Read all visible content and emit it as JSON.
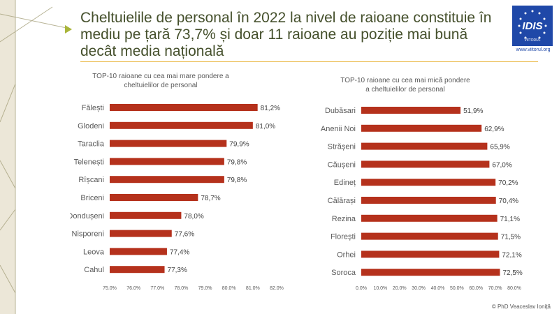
{
  "title": "Cheltuielile de personal în 2022 la nivel de raioane constituie în mediu pe țară 73,7% și doar 11 raioane au poziție mai bună decât media națională",
  "title_lines": [
    "Cheltuielile de personal în 2022 la nivel de raioane constituie în",
    "mediu pe țară 73,7% și doar 11 raioane au poziție mai bună",
    "decât media națională"
  ],
  "logo": {
    "text": "IDIS",
    "sub": "VIITORUL",
    "url": "www.viitorul.org"
  },
  "copyright": "© PhD Veaceslav Ioniță",
  "colors": {
    "bar": "#b5311c",
    "title": "#45502c",
    "accent": "#e9b640",
    "logo": "#1f48a8"
  },
  "chart_data": [
    {
      "type": "bar",
      "orientation": "horizontal",
      "title": "TOP-10 raioane cu cea mai mare pondere a cheltuielilor de personal",
      "title_lines": [
        "TOP-10 raioane cu cea mai mare pondere a",
        "cheltuielilor de personal"
      ],
      "categories": [
        "Fălești",
        "Glodeni",
        "Taraclia",
        "Telenești",
        "Rîșcani",
        "Briceni",
        "Dondușeni",
        "Nisporeni",
        "Leova",
        "Cahul"
      ],
      "values": [
        81.2,
        81.0,
        79.9,
        79.8,
        79.8,
        78.7,
        78.0,
        77.6,
        77.4,
        77.3
      ],
      "labels": [
        "81,2%",
        "81,0%",
        "79,9%",
        "79,8%",
        "79,8%",
        "78,7%",
        "78,0%",
        "77,6%",
        "77,4%",
        "77,3%"
      ],
      "xlim": [
        75,
        82
      ],
      "ticks": [
        75,
        76,
        77,
        78,
        79,
        80,
        81,
        82
      ],
      "tick_labels": [
        "75.0%",
        "76.0%",
        "77.0%",
        "78.0%",
        "79.0%",
        "80.0%",
        "81.0%",
        "82.0%"
      ],
      "xlabel": "",
      "ylabel": "",
      "grid": false
    },
    {
      "type": "bar",
      "orientation": "horizontal",
      "title": "TOP-10 raioane cu cea mai mică pondere a cheltuielilor de personal",
      "title_lines": [
        "TOP-10 raioane cu cea mai mică pondere",
        "a cheltuielilor de personal"
      ],
      "categories": [
        "Dubăsari",
        "Anenii Noi",
        "Strășeni",
        "Căușeni",
        "Edineț",
        "Călărași",
        "Rezina",
        "Florești",
        "Orhei",
        "Soroca"
      ],
      "values": [
        51.9,
        62.9,
        65.9,
        67.0,
        70.2,
        70.4,
        71.1,
        71.5,
        72.1,
        72.5
      ],
      "labels": [
        "51,9%",
        "62,9%",
        "65,9%",
        "67,0%",
        "70,2%",
        "70,4%",
        "71,1%",
        "71,5%",
        "72,1%",
        "72,5%"
      ],
      "xlim": [
        0,
        80
      ],
      "ticks": [
        0,
        10,
        20,
        30,
        40,
        50,
        60,
        70,
        80
      ],
      "tick_labels": [
        "0.0%",
        "10.0%",
        "20.0%",
        "30.0%",
        "40.0%",
        "50.0%",
        "60.0%",
        "70.0%",
        "80.0%"
      ],
      "xlabel": "",
      "ylabel": "",
      "grid": false
    }
  ]
}
